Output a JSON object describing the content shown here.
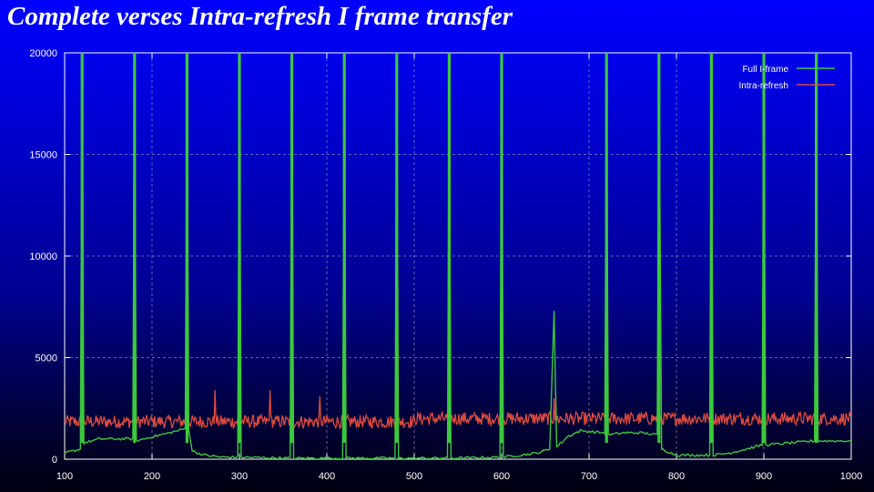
{
  "chart_data": {
    "type": "line",
    "title": "Complete verses Intra-refresh I frame transfer",
    "xlabel": "",
    "ylabel": "",
    "xlim": [
      100,
      1000
    ],
    "ylim": [
      0,
      20000
    ],
    "x_ticks": [
      "100",
      "200",
      "300",
      "400",
      "500",
      "600",
      "700",
      "800",
      "900",
      "1000"
    ],
    "y_ticks": [
      "0",
      "5000",
      "10000",
      "15000",
      "20000"
    ],
    "grid": true,
    "legend_position": "top-right",
    "series": [
      {
        "name": "Full I-frame",
        "color": "#3cc83c",
        "points": [
          [
            100,
            300
          ],
          [
            118,
            500
          ],
          [
            120,
            20000
          ],
          [
            122,
            800
          ],
          [
            140,
            1000
          ],
          [
            160,
            1000
          ],
          [
            178,
            1000
          ],
          [
            180,
            20000
          ],
          [
            182,
            900
          ],
          [
            200,
            1100
          ],
          [
            220,
            1300
          ],
          [
            238,
            1500
          ],
          [
            240,
            20000
          ],
          [
            242,
            1500
          ],
          [
            246,
            400
          ],
          [
            260,
            200
          ],
          [
            280,
            100
          ],
          [
            298,
            100
          ],
          [
            300,
            20000
          ],
          [
            302,
            100
          ],
          [
            358,
            50
          ],
          [
            360,
            20000
          ],
          [
            362,
            50
          ],
          [
            418,
            50
          ],
          [
            420,
            20000
          ],
          [
            422,
            50
          ],
          [
            478,
            50
          ],
          [
            480,
            20000
          ],
          [
            482,
            50
          ],
          [
            538,
            50
          ],
          [
            540,
            20000
          ],
          [
            542,
            50
          ],
          [
            598,
            100
          ],
          [
            600,
            20000
          ],
          [
            602,
            100
          ],
          [
            640,
            300
          ],
          [
            655,
            500
          ],
          [
            660,
            7300
          ],
          [
            663,
            600
          ],
          [
            675,
            1100
          ],
          [
            690,
            1400
          ],
          [
            718,
            1300
          ],
          [
            720,
            20000
          ],
          [
            722,
            1200
          ],
          [
            740,
            1300
          ],
          [
            760,
            1300
          ],
          [
            778,
            1200
          ],
          [
            780,
            20000
          ],
          [
            783,
            500
          ],
          [
            800,
            200
          ],
          [
            838,
            200
          ],
          [
            840,
            20000
          ],
          [
            842,
            200
          ],
          [
            860,
            300
          ],
          [
            880,
            500
          ],
          [
            898,
            700
          ],
          [
            900,
            20000
          ],
          [
            902,
            700
          ],
          [
            930,
            800
          ],
          [
            958,
            900
          ],
          [
            960,
            20000
          ],
          [
            962,
            900
          ],
          [
            1000,
            900
          ]
        ]
      },
      {
        "name": "Intra-refresh",
        "color": "#dc4b3c",
        "baseline": 1850,
        "spikes": [
          [
            120,
            4200
          ],
          [
            180,
            5300
          ],
          [
            240,
            6300
          ],
          [
            272,
            3400
          ],
          [
            300,
            5800
          ],
          [
            335,
            3400
          ],
          [
            360,
            5500
          ],
          [
            392,
            3100
          ],
          [
            420,
            5700
          ],
          [
            480,
            5200
          ],
          [
            540,
            3100
          ],
          [
            600,
            3000
          ],
          [
            660,
            3000
          ],
          [
            720,
            2700
          ],
          [
            780,
            2600
          ],
          [
            840,
            2700
          ],
          [
            900,
            2600
          ],
          [
            960,
            2700
          ]
        ]
      }
    ]
  }
}
